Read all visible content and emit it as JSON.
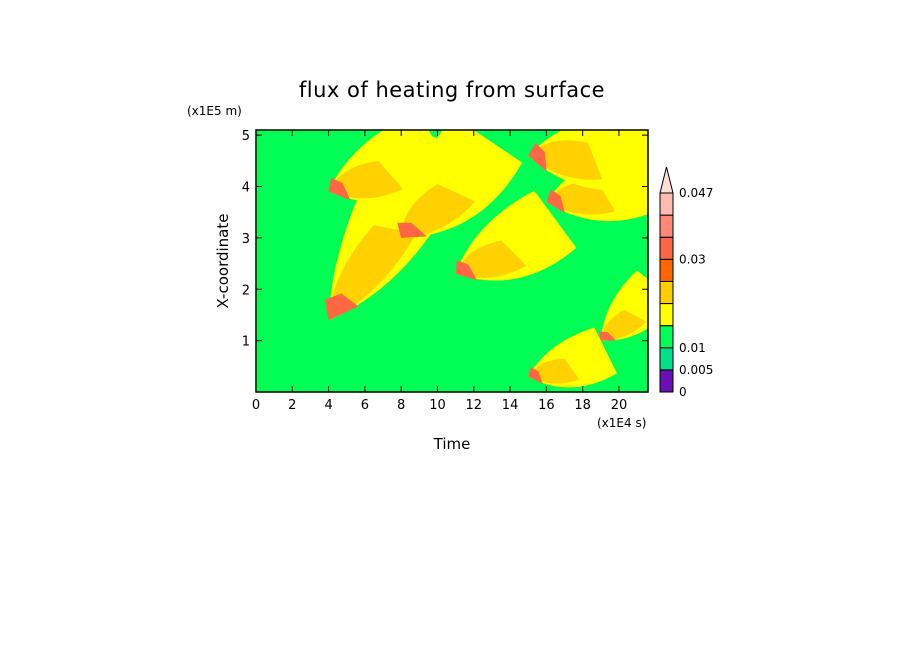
{
  "chart_data": {
    "type": "heatmap",
    "title": "flux of heating from surface",
    "xlabel": "Time",
    "ylabel": "X-coordinate",
    "x_scale_label": "(x1E4 s)",
    "y_scale_label": "(x1E5 m)",
    "xlim": [
      0,
      21.6
    ],
    "ylim": [
      0,
      5.1
    ],
    "x_ticks": [
      "0",
      "2",
      "4",
      "6",
      "8",
      "10",
      "12",
      "14",
      "16",
      "18",
      "20"
    ],
    "y_ticks": [
      "1",
      "2",
      "3",
      "4",
      "5"
    ],
    "colorbar": {
      "levels": [
        0,
        0.005,
        0.01,
        0.015,
        0.02,
        0.025,
        0.03,
        0.035,
        0.04,
        0.047
      ],
      "labels": [
        "0",
        "0.005",
        "0.01",
        "0.03",
        "0.047"
      ],
      "colors": [
        "#6a0fb8",
        "#00e08a",
        "#00ff55",
        "#ffff00",
        "#ffcc00",
        "#ff6600",
        "#ff6644",
        "#ff8877",
        "#ffbbb0",
        "#ffe0d8"
      ]
    },
    "background_level_color": "#00ff55",
    "features": [
      {
        "name": "band-1",
        "t_start": 4.0,
        "x_start": 1.4,
        "t_end": 9.0,
        "x_end": 5.1,
        "peak_color": "#ff6644"
      },
      {
        "name": "band-2",
        "t_start": 4.0,
        "x_start": 3.9,
        "t_end": 9.5,
        "x_end": 5.1,
        "peak_color": "#ff6644"
      },
      {
        "name": "band-3",
        "t_start": 8.0,
        "x_start": 3.0,
        "t_end": 12.0,
        "x_end": 5.1,
        "peak_color": "#ff6644"
      },
      {
        "name": "band-4",
        "t_start": 11.0,
        "x_start": 2.3,
        "t_end": 16.0,
        "x_end": 3.6,
        "peak_color": "#ff6644"
      },
      {
        "name": "band-5",
        "t_start": 15.0,
        "x_start": 0.3,
        "t_end": 19.0,
        "x_end": 1.0,
        "peak_color": "#ff6644"
      },
      {
        "name": "band-6",
        "t_start": 16.0,
        "x_start": 3.7,
        "t_end": 21.6,
        "x_end": 4.5,
        "peak_color": "#ff6644"
      },
      {
        "name": "band-7",
        "t_start": 15.0,
        "x_start": 4.6,
        "t_end": 21.6,
        "x_end": 5.1,
        "peak_color": "#ff6644"
      },
      {
        "name": "band-8",
        "t_start": 19.0,
        "x_start": 1.0,
        "t_end": 21.6,
        "x_end": 2.2,
        "peak_color": "#ff6644"
      }
    ]
  }
}
